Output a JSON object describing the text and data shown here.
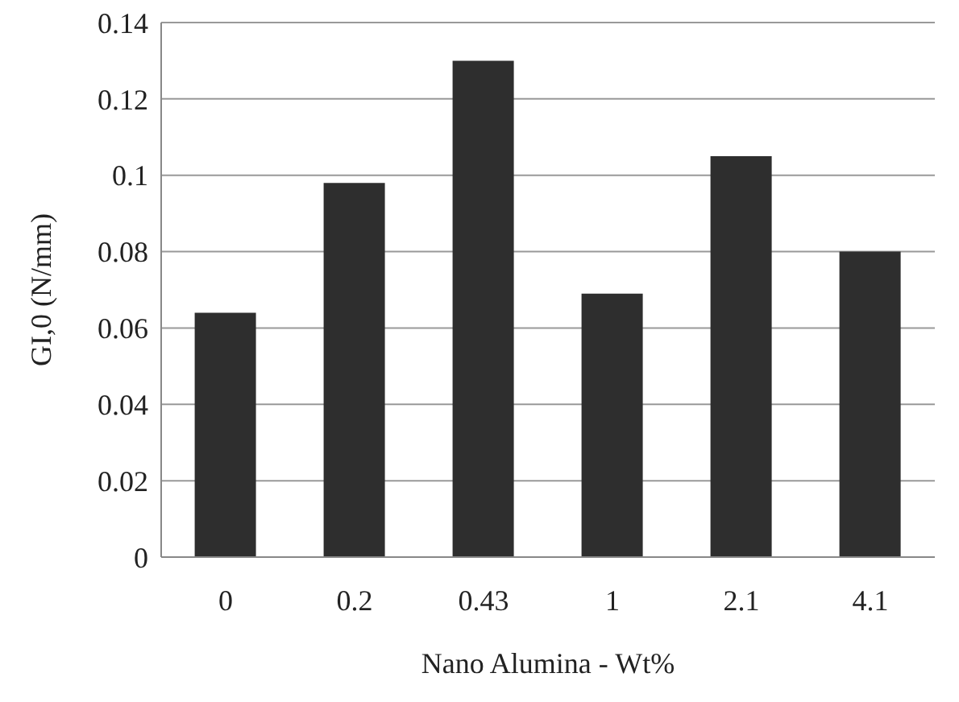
{
  "chart_data": {
    "type": "bar",
    "xlabel": "Nano Alumina - Wt%",
    "ylabel": "GI,0 (N/mm)",
    "categories": [
      "0",
      "0.2",
      "0.43",
      "1",
      "2.1",
      "4.1"
    ],
    "values": [
      0.064,
      0.098,
      0.13,
      0.069,
      0.105,
      0.08
    ],
    "color": "#2e2e2e",
    "ylim": [
      0,
      0.14
    ],
    "yticks": [
      0,
      0.02,
      0.04,
      0.06,
      0.08,
      0.1,
      0.12,
      0.14
    ],
    "grid": "y"
  }
}
